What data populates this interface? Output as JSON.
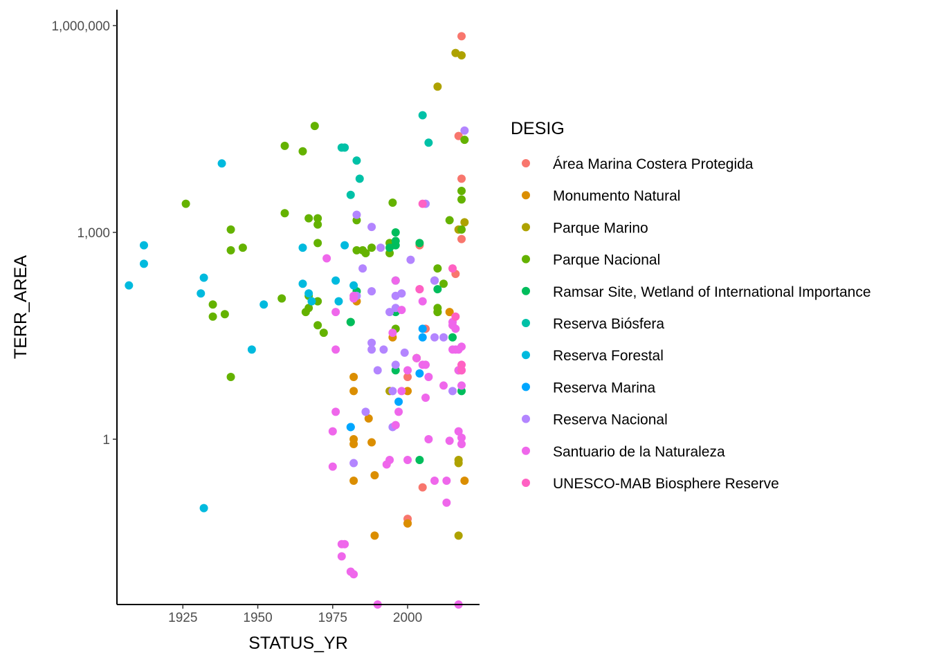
{
  "chart_data": {
    "type": "scatter",
    "xlabel": "STATUS_YR",
    "ylabel": "TERR_AREA",
    "y_scale": "log10",
    "xlim": [
      1903,
      2024
    ],
    "ylim": [
      0.004,
      1700000
    ],
    "x_ticks": [
      1925,
      1950,
      1975,
      2000
    ],
    "x_tick_labels": [
      "1925",
      "1950",
      "1975",
      "2000"
    ],
    "y_ticks": [
      1,
      1000,
      1000000
    ],
    "y_tick_labels": [
      "1",
      "1,000",
      "1,000,000"
    ],
    "grid": false,
    "legend": {
      "title": "DESIG",
      "placement": "right"
    },
    "series": [
      {
        "name": "Área Marina Costera Protegida",
        "color": "#F8766D",
        "points": [
          [
            2018,
            700000
          ],
          [
            2017,
            25000
          ],
          [
            2018,
            6000
          ],
          [
            2018,
            800
          ],
          [
            2016,
            250
          ],
          [
            2004,
            650
          ],
          [
            2006,
            40
          ],
          [
            2003,
            15
          ],
          [
            2000,
            8
          ],
          [
            2005,
            0.2
          ],
          [
            2000,
            0.06
          ],
          [
            2000,
            0.07
          ]
        ]
      },
      {
        "name": "Monumento Natural",
        "color": "#DB8E00",
        "points": [
          [
            1983,
            100
          ],
          [
            1995,
            30
          ],
          [
            1982,
            8
          ],
          [
            1982,
            5
          ],
          [
            1987,
            2
          ],
          [
            1982,
            1
          ],
          [
            1982,
            0.85
          ],
          [
            1988,
            0.9
          ],
          [
            1989,
            0.3
          ],
          [
            1982,
            0.25
          ],
          [
            1989,
            0.04
          ],
          [
            2000,
            0.06
          ],
          [
            2019,
            0.25
          ],
          [
            2014,
            70
          ],
          [
            2017,
            10
          ],
          [
            2010,
            70
          ],
          [
            2000,
            5
          ]
        ]
      },
      {
        "name": "Parque Marino",
        "color": "#AEA200",
        "points": [
          [
            2016,
            400000
          ],
          [
            2018,
            370000
          ],
          [
            2010,
            130000
          ],
          [
            2019,
            1400
          ],
          [
            2017,
            1100
          ],
          [
            1994,
            5
          ],
          [
            2017,
            0.45
          ],
          [
            2017,
            0.5
          ],
          [
            2017,
            0.04
          ],
          [
            2003,
            15
          ]
        ]
      },
      {
        "name": "Parque Nacional",
        "color": "#64B200",
        "points": [
          [
            1926,
            2600
          ],
          [
            1941,
            1100
          ],
          [
            1941,
            550
          ],
          [
            1945,
            600
          ],
          [
            1935,
            90
          ],
          [
            1935,
            60
          ],
          [
            1939,
            65
          ],
          [
            1941,
            8
          ],
          [
            1958,
            110
          ],
          [
            1959,
            18000
          ],
          [
            1959,
            1900
          ],
          [
            1965,
            15000
          ],
          [
            1966,
            70
          ],
          [
            1967,
            80
          ],
          [
            1967,
            1600
          ],
          [
            1967,
            120
          ],
          [
            1969,
            35000
          ],
          [
            1970,
            1600
          ],
          [
            1970,
            1300
          ],
          [
            1970,
            700
          ],
          [
            1970,
            100
          ],
          [
            1970,
            45
          ],
          [
            1972,
            35
          ],
          [
            1981,
            50
          ],
          [
            1983,
            1500
          ],
          [
            1983,
            550
          ],
          [
            1985,
            550
          ],
          [
            1986,
            500
          ],
          [
            1988,
            600
          ],
          [
            1994,
            700
          ],
          [
            1994,
            500
          ],
          [
            1995,
            2700
          ],
          [
            1996,
            40
          ],
          [
            2010,
            80
          ],
          [
            2010,
            70
          ],
          [
            2014,
            1500
          ],
          [
            2018,
            4000
          ],
          [
            2018,
            3000
          ],
          [
            2018,
            1100
          ],
          [
            2019,
            22000
          ],
          [
            2012,
            180
          ],
          [
            2010,
            300
          ]
        ]
      },
      {
        "name": "Ramsar Site, Wetland of International Importance",
        "color": "#00BD5C",
        "points": [
          [
            1981,
            50
          ],
          [
            1983,
            140
          ],
          [
            1994,
            600
          ],
          [
            1996,
            650
          ],
          [
            1996,
            750
          ],
          [
            1996,
            1000
          ],
          [
            1996,
            200
          ],
          [
            1996,
            70
          ],
          [
            1996,
            10
          ],
          [
            2004,
            700
          ],
          [
            2004,
            0.5
          ],
          [
            2009,
            200
          ],
          [
            2010,
            150
          ],
          [
            2015,
            30
          ],
          [
            2018,
            5
          ]
        ]
      },
      {
        "name": "Reserva Biósfera",
        "color": "#00C1A7",
        "points": [
          [
            1978,
            17000
          ],
          [
            1979,
            17000
          ],
          [
            1981,
            3500
          ],
          [
            1983,
            11000
          ],
          [
            1984,
            6000
          ],
          [
            2005,
            50000
          ],
          [
            2007,
            20000
          ]
        ]
      },
      {
        "name": "Reserva Forestal",
        "color": "#00BADE",
        "points": [
          [
            1907,
            170
          ],
          [
            1912,
            650
          ],
          [
            1912,
            350
          ],
          [
            1931,
            130
          ],
          [
            1932,
            220
          ],
          [
            1932,
            0.1
          ],
          [
            1938,
            10000
          ],
          [
            1948,
            20
          ],
          [
            1952,
            90
          ],
          [
            1965,
            600
          ],
          [
            1965,
            180
          ],
          [
            1967,
            130
          ],
          [
            1968,
            100
          ],
          [
            1976,
            200
          ],
          [
            1977,
            100
          ],
          [
            1979,
            650
          ],
          [
            1981,
            1.5
          ],
          [
            1982,
            170
          ]
        ]
      },
      {
        "name": "Reserva Marina",
        "color": "#00A6FF",
        "points": [
          [
            1981,
            1.5
          ],
          [
            2004,
            9
          ],
          [
            2005,
            40
          ],
          [
            2005,
            30
          ],
          [
            1997,
            3.5
          ]
        ]
      },
      {
        "name": "Reserva Nacional",
        "color": "#B385FF",
        "points": [
          [
            1983,
            1800
          ],
          [
            1988,
            1200
          ],
          [
            1985,
            300
          ],
          [
            1991,
            600
          ],
          [
            1983,
            120
          ],
          [
            1988,
            140
          ],
          [
            1988,
            25
          ],
          [
            1988,
            20
          ],
          [
            1992,
            20
          ],
          [
            1990,
            10
          ],
          [
            1994,
            70
          ],
          [
            1996,
            120
          ],
          [
            1996,
            80
          ],
          [
            1998,
            130
          ],
          [
            1996,
            12
          ],
          [
            1995,
            5
          ],
          [
            1995,
            1.5
          ],
          [
            1999,
            18
          ],
          [
            2001,
            400
          ],
          [
            2006,
            2600
          ],
          [
            2009,
            200
          ],
          [
            2009,
            30
          ],
          [
            2012,
            30
          ],
          [
            2019,
            30000
          ],
          [
            1982,
            0.45
          ],
          [
            1986,
            2.5
          ],
          [
            2015,
            5
          ]
        ]
      },
      {
        "name": "Santuario de la Naturaleza",
        "color": "#EF67EB",
        "points": [
          [
            1973,
            420
          ],
          [
            1976,
            70
          ],
          [
            1976,
            20
          ],
          [
            1976,
            2.5
          ],
          [
            1975,
            1.3
          ],
          [
            1975,
            0.4
          ],
          [
            1978,
            0.03
          ],
          [
            1979,
            0.03
          ],
          [
            1978,
            0.02
          ],
          [
            1981,
            0.012
          ],
          [
            1982,
            0.011
          ],
          [
            1982,
            120
          ],
          [
            1982,
            110
          ],
          [
            1990,
            0.004
          ],
          [
            1993,
            0.43
          ],
          [
            1994,
            0.5
          ],
          [
            1995,
            35
          ],
          [
            1996,
            200
          ],
          [
            1996,
            1.6
          ],
          [
            1997,
            2.5
          ],
          [
            1998,
            75
          ],
          [
            1998,
            5
          ],
          [
            2000,
            10
          ],
          [
            2000,
            0.5
          ],
          [
            2003,
            15
          ],
          [
            2004,
            150
          ],
          [
            2005,
            100
          ],
          [
            2005,
            12
          ],
          [
            2006,
            12
          ],
          [
            2006,
            4
          ],
          [
            2007,
            1
          ],
          [
            2007,
            8
          ],
          [
            2009,
            0.25
          ],
          [
            2012,
            6
          ],
          [
            2013,
            0.12
          ],
          [
            2013,
            0.25
          ],
          [
            2014,
            0.95
          ],
          [
            2015,
            20
          ],
          [
            2016,
            20
          ],
          [
            2017,
            20
          ],
          [
            2017,
            10
          ],
          [
            2017,
            1.3
          ],
          [
            2018,
            6
          ],
          [
            2018,
            10
          ],
          [
            2018,
            1.05
          ],
          [
            2018,
            0.85
          ],
          [
            2018,
            22
          ],
          [
            2017,
            0.004
          ],
          [
            2015,
            50
          ],
          [
            2015,
            45
          ],
          [
            2016,
            40
          ]
        ]
      },
      {
        "name": "UNESCO-MAB Biosphere Reserve",
        "color": "#FF61C3",
        "points": [
          [
            2004,
            150
          ],
          [
            2005,
            2600
          ],
          [
            2015,
            300
          ],
          [
            2016,
            60
          ],
          [
            2018,
            12
          ],
          [
            2018,
            10
          ]
        ]
      }
    ]
  }
}
